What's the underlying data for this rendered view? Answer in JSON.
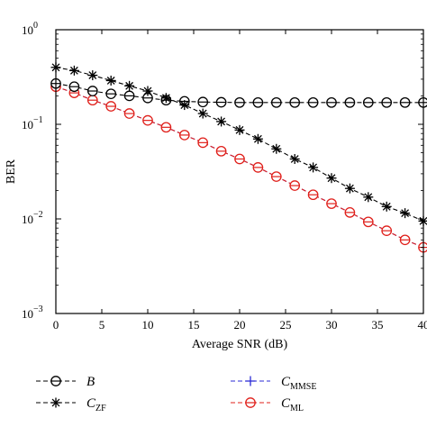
{
  "chart_data": {
    "type": "line",
    "title": "",
    "xlabel": "Average SNR (dB)",
    "ylabel": "BER",
    "xlim": [
      0,
      40
    ],
    "ylim": [
      0.001,
      1
    ],
    "yscale": "log",
    "grid": false,
    "legend_position": "below",
    "x_ticks": [
      0,
      5,
      10,
      15,
      20,
      25,
      30,
      35,
      40
    ],
    "y_ticks": [
      {
        "value": 0.001,
        "base": "10",
        "exp": "−3"
      },
      {
        "value": 0.01,
        "base": "10",
        "exp": "−2"
      },
      {
        "value": 0.1,
        "base": "10",
        "exp": "−1"
      },
      {
        "value": 1,
        "base": "10",
        "exp": "0"
      }
    ],
    "x": [
      0,
      2,
      4,
      6,
      8,
      10,
      12,
      14,
      16,
      18,
      20,
      22,
      24,
      26,
      28,
      30,
      32,
      34,
      36,
      38,
      40
    ],
    "series": [
      {
        "key": "B",
        "name": "B",
        "name_main": "B",
        "name_sub": "",
        "marker": "circle",
        "color": "#000000",
        "values": [
          0.27,
          0.25,
          0.225,
          0.21,
          0.2,
          0.19,
          0.18,
          0.175,
          0.172,
          0.171,
          0.17,
          0.17,
          0.17,
          0.17,
          0.17,
          0.17,
          0.17,
          0.17,
          0.17,
          0.17,
          0.17
        ]
      },
      {
        "key": "CZF",
        "name": "CZF",
        "name_main": "C",
        "name_sub": "ZF",
        "marker": "star",
        "color": "#000000",
        "values": [
          0.4,
          0.37,
          0.33,
          0.29,
          0.255,
          0.225,
          0.19,
          0.16,
          0.13,
          0.107,
          0.087,
          0.07,
          0.055,
          0.043,
          0.035,
          0.027,
          0.021,
          0.017,
          0.0135,
          0.0115,
          0.0095
        ]
      },
      {
        "key": "CMMSE",
        "name": "CMMSE",
        "name_main": "C",
        "name_sub": "MMSE",
        "marker": "plus",
        "color": "#2b2bd6",
        "values": [
          0.25,
          0.215,
          0.18,
          0.155,
          0.13,
          0.11,
          0.093,
          0.077,
          0.064,
          0.052,
          0.043,
          0.035,
          0.028,
          0.0225,
          0.018,
          0.0145,
          0.0117,
          0.0093,
          0.0075,
          0.006,
          0.005
        ]
      },
      {
        "key": "CML",
        "name": "CML",
        "name_main": "C",
        "name_sub": "ML",
        "marker": "circle",
        "color": "#e0201b",
        "values": [
          0.25,
          0.215,
          0.18,
          0.155,
          0.13,
          0.11,
          0.093,
          0.077,
          0.064,
          0.052,
          0.043,
          0.035,
          0.028,
          0.0225,
          0.018,
          0.0145,
          0.0117,
          0.0093,
          0.0075,
          0.006,
          0.005
        ]
      }
    ],
    "legend": [
      {
        "series": "B",
        "main": "B",
        "sub": ""
      },
      {
        "series": "CMMSE",
        "main": "C",
        "sub": "MMSE"
      },
      {
        "series": "CZF",
        "main": "C",
        "sub": "ZF"
      },
      {
        "series": "CML",
        "main": "C",
        "sub": "ML"
      }
    ]
  }
}
